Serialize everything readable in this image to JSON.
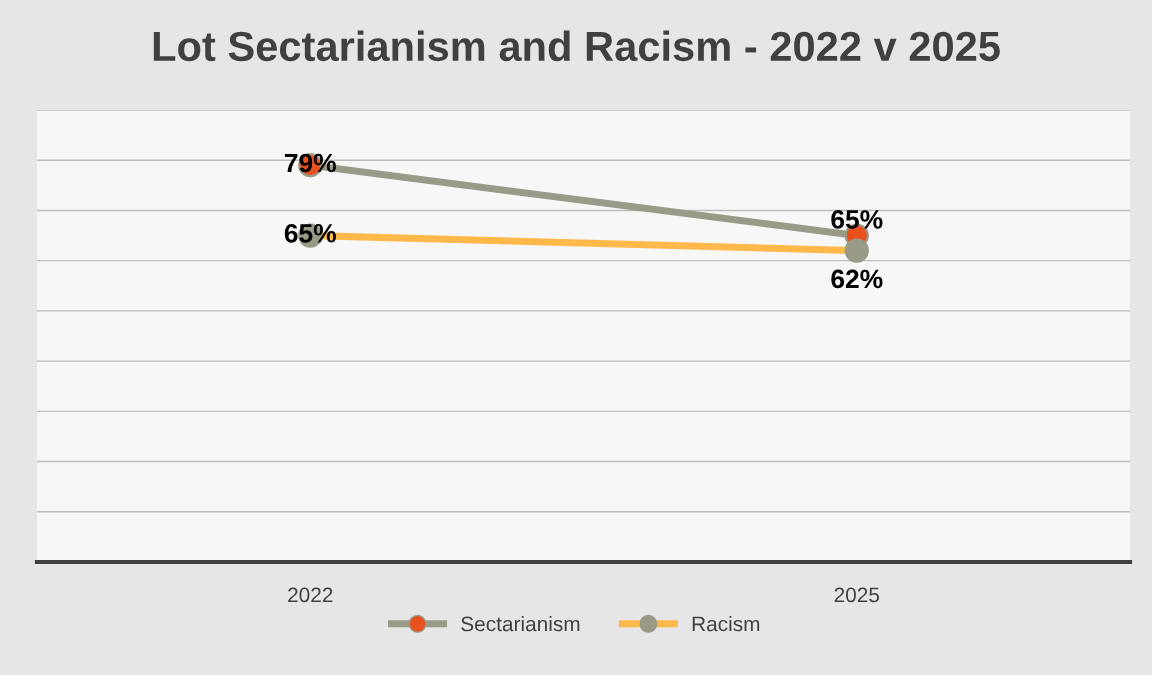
{
  "chart_data": {
    "type": "line",
    "title": "Lot Sectarianism and Racism - 2022 v 2025",
    "categories": [
      "2022",
      "2025"
    ],
    "series": [
      {
        "name": "Sectarianism",
        "color": "#9a9a88",
        "colors": [
          "#e8501e",
          "#e8501e"
        ],
        "values": [
          79,
          65
        ],
        "value_labels": [
          "79%",
          "65%"
        ]
      },
      {
        "name": "Racism",
        "color": "#ffb84a",
        "colors": [
          "#9a9a88",
          "#9a9a88"
        ],
        "values": [
          65,
          62
        ],
        "value_labels": [
          "65%",
          "62%"
        ]
      }
    ],
    "ylim": [
      0,
      90
    ],
    "yticks": [
      {
        "value": 0,
        "label": null
      },
      {
        "value": 10,
        "label": null
      },
      {
        "value": 20,
        "label": null
      },
      {
        "value": 30,
        "label": null
      },
      {
        "value": 40,
        "label": null
      },
      {
        "value": 50,
        "label": null
      },
      {
        "value": 60,
        "label": null
      },
      {
        "value": 70,
        "label": null
      },
      {
        "value": 80,
        "label": null
      },
      {
        "value": 90,
        "label": null
      }
    ],
    "tick_labels": "x",
    "grid": "y",
    "legend": "bottom",
    "marker": "circle",
    "line_style": "solid"
  }
}
